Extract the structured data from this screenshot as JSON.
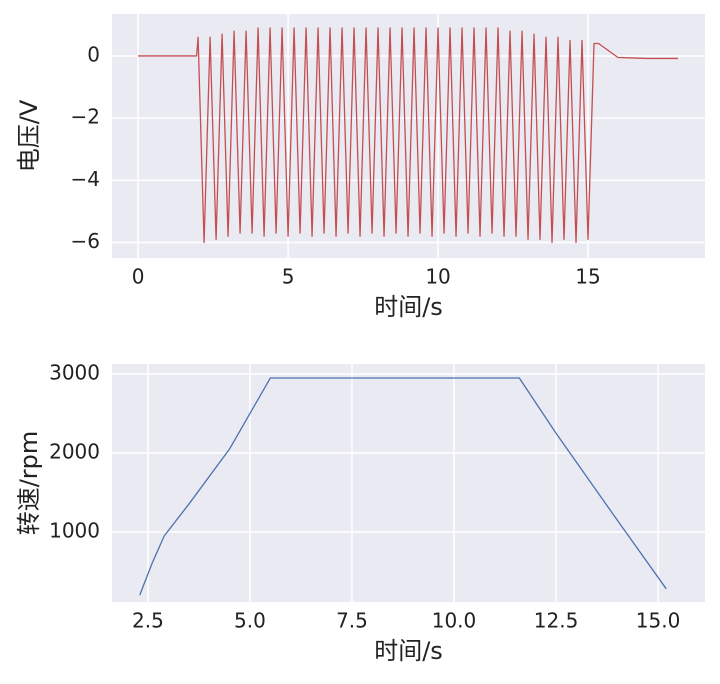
{
  "chart_data": [
    {
      "type": "line",
      "ylabel": "电压/V",
      "xlabel": "时间/s",
      "xlim": [
        -0.87,
        18.9
      ],
      "ylim": [
        -6.5,
        1.35
      ],
      "xticks": [
        0,
        5,
        10,
        15
      ],
      "yticks": [
        {
          "value": -6,
          "label": "−6"
        },
        {
          "value": -4,
          "label": "−4"
        },
        {
          "value": -2,
          "label": "−2"
        },
        0
      ],
      "grid": true,
      "series": [
        {
          "color": "#c44e52",
          "x": [
            0,
            1.95,
            2.0,
            2.2,
            2.4,
            2.6,
            2.8,
            3.0,
            3.2,
            3.4,
            3.6,
            3.8,
            4.0,
            4.2,
            4.4,
            4.6,
            4.8,
            5.0,
            5.2,
            5.4,
            5.6,
            5.8,
            6.0,
            6.2,
            6.4,
            6.6,
            6.8,
            7.0,
            7.2,
            7.4,
            7.6,
            7.8,
            8.0,
            8.2,
            8.4,
            8.6,
            8.8,
            9.0,
            9.2,
            9.4,
            9.6,
            9.8,
            10.0,
            10.2,
            10.4,
            10.6,
            10.8,
            11.0,
            11.2,
            11.4,
            11.6,
            11.8,
            12.0,
            12.2,
            12.4,
            12.6,
            12.8,
            13.0,
            13.2,
            13.4,
            13.6,
            13.8,
            14.0,
            14.2,
            14.4,
            14.6,
            14.8,
            15.0,
            15.2,
            15.35,
            16.0,
            17.0,
            18.0
          ],
          "values": [
            0,
            0,
            0.6,
            -6.0,
            0.6,
            -5.9,
            0.7,
            -5.8,
            0.8,
            -5.7,
            0.8,
            -5.7,
            0.9,
            -5.8,
            0.9,
            -5.7,
            0.9,
            -5.8,
            0.9,
            -5.7,
            0.9,
            -5.8,
            0.9,
            -5.7,
            0.9,
            -5.8,
            0.9,
            -5.7,
            0.9,
            -5.8,
            0.9,
            -5.7,
            0.9,
            -5.8,
            0.9,
            -5.7,
            0.9,
            -5.8,
            0.9,
            -5.7,
            0.9,
            -5.8,
            0.9,
            -5.7,
            0.9,
            -5.8,
            0.9,
            -5.7,
            0.9,
            -5.8,
            0.9,
            -5.7,
            0.9,
            -5.8,
            0.8,
            -5.8,
            0.8,
            -5.9,
            0.7,
            -5.9,
            0.6,
            -6.0,
            0.6,
            -5.9,
            0.5,
            -6.0,
            0.5,
            -5.9,
            0.4,
            0.4,
            -0.05,
            -0.08,
            -0.08
          ]
        }
      ]
    },
    {
      "type": "line",
      "ylabel": "转速/rpm",
      "xlabel": "时间/s",
      "xlim": [
        1.62,
        16.15
      ],
      "ylim": [
        113,
        3127
      ],
      "xticks": [
        2.5,
        {
          "value": 5,
          "label": "5.0"
        },
        7.5,
        {
          "value": 10,
          "label": "10.0"
        },
        12.5,
        {
          "value": 15,
          "label": "15.0"
        }
      ],
      "yticks": [
        1000,
        2000,
        3000
      ],
      "grid": true,
      "series": [
        {
          "color": "#4c72b0",
          "x": [
            2.3,
            2.6,
            2.9,
            3.5,
            4.5,
            5.5,
            11.6,
            12.5,
            14.0,
            15.2
          ],
          "values": [
            200,
            600,
            950,
            1350,
            2050,
            2950,
            2950,
            2250,
            1150,
            280
          ]
        }
      ]
    }
  ]
}
